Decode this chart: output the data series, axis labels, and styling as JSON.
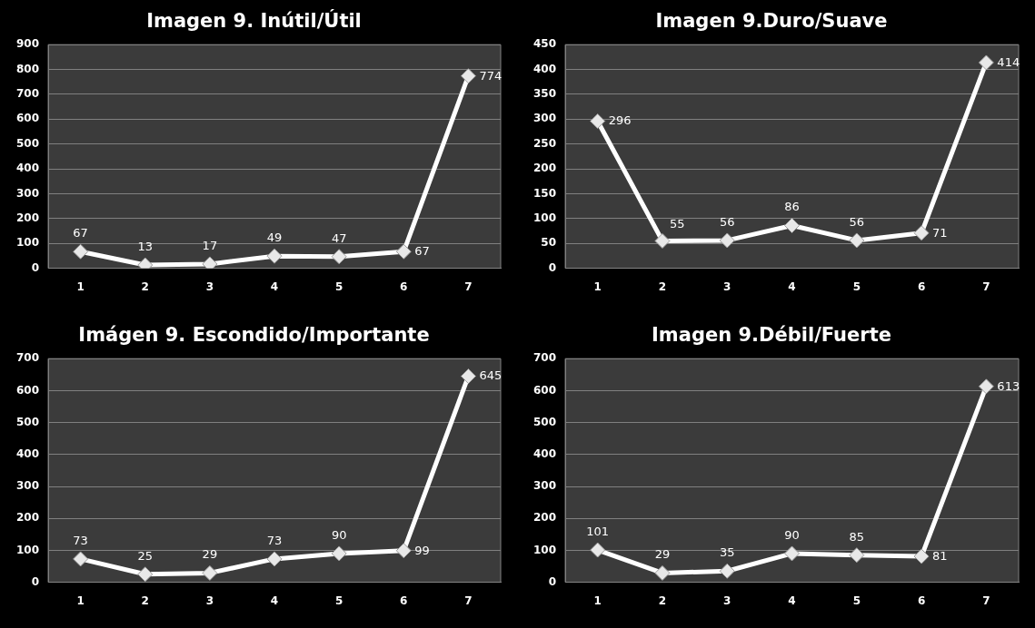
{
  "chart_data": [
    {
      "type": "line",
      "title": "Imagen 9. Inútil/Útil",
      "categories": [
        "1",
        "2",
        "3",
        "4",
        "5",
        "6",
        "7"
      ],
      "values": [
        67,
        13,
        17,
        49,
        47,
        67,
        774
      ],
      "color": "#ffffff",
      "ylim": [
        0,
        900
      ],
      "yticks": [
        0,
        100,
        200,
        300,
        400,
        500,
        600,
        700,
        800,
        900
      ],
      "grid": "y",
      "marker": "diamond",
      "data_labels": true
    },
    {
      "type": "line",
      "title": "Imagen 9.Duro/Suave",
      "categories": [
        "1",
        "2",
        "3",
        "4",
        "5",
        "6",
        "7"
      ],
      "values": [
        296,
        55,
        56,
        86,
        56,
        71,
        414
      ],
      "color": "#ffffff",
      "ylim": [
        0,
        450
      ],
      "yticks": [
        0,
        50,
        100,
        150,
        200,
        250,
        300,
        350,
        400,
        450
      ],
      "grid": "y",
      "marker": "diamond",
      "data_labels": true
    },
    {
      "type": "line",
      "title": "Imágen 9. Escondido/Importante",
      "categories": [
        "1",
        "2",
        "3",
        "4",
        "5",
        "6",
        "7"
      ],
      "values": [
        73,
        25,
        29,
        73,
        90,
        99,
        645
      ],
      "color": "#ffffff",
      "ylim": [
        0,
        700
      ],
      "yticks": [
        0,
        100,
        200,
        300,
        400,
        500,
        600,
        700
      ],
      "grid": "y",
      "marker": "diamond",
      "data_labels": true
    },
    {
      "type": "line",
      "title": "Imagen 9.Débil/Fuerte",
      "categories": [
        "1",
        "2",
        "3",
        "4",
        "5",
        "6",
        "7"
      ],
      "values": [
        101,
        29,
        35,
        90,
        85,
        81,
        613
      ],
      "color": "#ffffff",
      "ylim": [
        0,
        700
      ],
      "yticks": [
        0,
        100,
        200,
        300,
        400,
        500,
        600,
        700
      ],
      "grid": "y",
      "marker": "diamond",
      "data_labels": true
    }
  ]
}
